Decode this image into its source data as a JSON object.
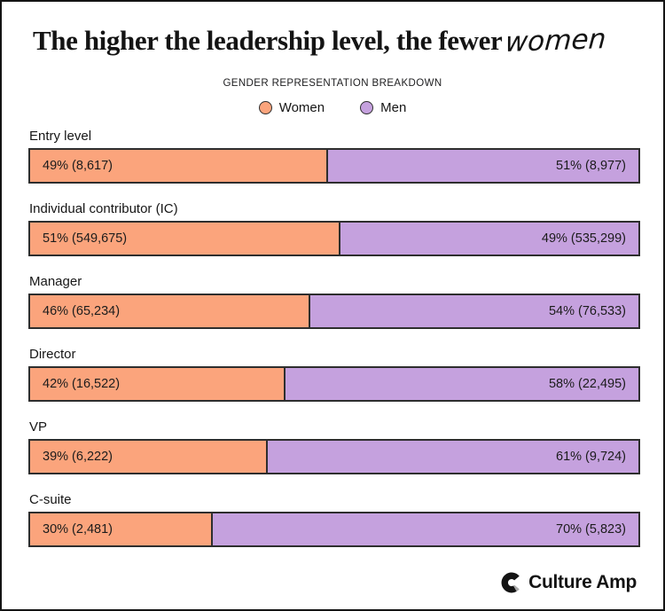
{
  "header": {
    "title_main": "The higher the leadership level, the fewer",
    "title_script": "women",
    "subtitle": "GENDER REPRESENTATION BREAKDOWN"
  },
  "legend": {
    "women": "Women",
    "men": "Men"
  },
  "colors": {
    "women": "#FBA47C",
    "men": "#C5A1DE",
    "bar_border": "#2e2e2e",
    "card_border": "#141414",
    "text": "#161616"
  },
  "footer": {
    "brand": "Culture Amp"
  },
  "chart_data": {
    "type": "bar",
    "variant": "horizontal-stacked-100-percent",
    "title": "The higher the leadership level, the fewer women",
    "subtitle": "GENDER REPRESENTATION BREAKDOWN",
    "legend_position": "top-center",
    "grid": false,
    "categories": [
      "Entry level",
      "Individual contributor (IC)",
      "Manager",
      "Director",
      "VP",
      "C-suite"
    ],
    "series": [
      {
        "name": "Women",
        "color": "#FBA47C",
        "percents": [
          49,
          51,
          46,
          42,
          39,
          30
        ],
        "counts": [
          8617,
          549675,
          65234,
          16522,
          6222,
          2481
        ],
        "labels": [
          "49% (8,617)",
          "51% (549,675)",
          "46% (65,234)",
          "42% (16,522)",
          "39% (6,222)",
          "30% (2,481)"
        ]
      },
      {
        "name": "Men",
        "color": "#C5A1DE",
        "percents": [
          51,
          49,
          54,
          58,
          61,
          70
        ],
        "counts": [
          8977,
          535299,
          76533,
          22495,
          9724,
          5823
        ],
        "labels": [
          "51% (8,977)",
          "49% (535,299)",
          "54% (76,533)",
          "58% (22,495)",
          "61% (9,724)",
          "70% (5,823)"
        ]
      }
    ]
  }
}
